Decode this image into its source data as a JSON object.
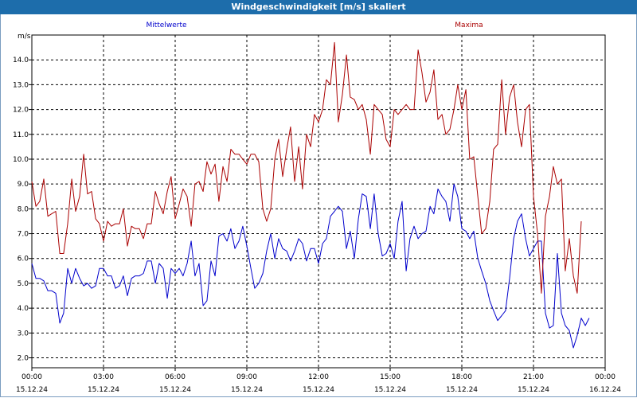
{
  "chart_data": {
    "type": "line",
    "title": "Windgeschwindigkeit [m/s] skaliert",
    "ylabel": "m/s",
    "ylim": [
      1.6,
      15.0
    ],
    "yticks": [
      "2.0",
      "3.0",
      "4.0",
      "5.0",
      "6.0",
      "7.0",
      "8.0",
      "9.0",
      "10.0",
      "11.0",
      "12.0",
      "13.0",
      "14.0"
    ],
    "xticks": [
      {
        "time": "00:00",
        "date": "15.12.24"
      },
      {
        "time": "03:00",
        "date": "15.12.24"
      },
      {
        "time": "06:00",
        "date": "15.12.24"
      },
      {
        "time": "09:00",
        "date": "15.12.24"
      },
      {
        "time": "12:00",
        "date": "15.12.24"
      },
      {
        "time": "15:00",
        "date": "15.12.24"
      },
      {
        "time": "18:00",
        "date": "15.12.24"
      },
      {
        "time": "21:00",
        "date": "15.12.24"
      },
      {
        "time": "00:00",
        "date": "16.12.24"
      }
    ],
    "x_hours": [
      0,
      0.17,
      0.33,
      0.5,
      0.67,
      0.83,
      1,
      1.17,
      1.33,
      1.5,
      1.67,
      1.83,
      2,
      2.17,
      2.33,
      2.5,
      2.67,
      2.83,
      3,
      3.17,
      3.33,
      3.5,
      3.67,
      3.83,
      4,
      4.17,
      4.33,
      4.5,
      4.67,
      4.83,
      5,
      5.17,
      5.33,
      5.5,
      5.67,
      5.83,
      6,
      6.17,
      6.33,
      6.5,
      6.67,
      6.83,
      7,
      7.17,
      7.33,
      7.5,
      7.67,
      7.83,
      8,
      8.17,
      8.33,
      8.5,
      8.67,
      8.83,
      9,
      9.17,
      9.33,
      9.5,
      9.67,
      9.83,
      10,
      10.17,
      10.33,
      10.5,
      10.67,
      10.83,
      11,
      11.17,
      11.33,
      11.5,
      11.67,
      11.83,
      12,
      12.17,
      12.33,
      12.5,
      12.67,
      12.83,
      13,
      13.17,
      13.33,
      13.5,
      13.67,
      13.83,
      14,
      14.17,
      14.33,
      14.5,
      14.67,
      14.83,
      15,
      15.17,
      15.33,
      15.5,
      15.67,
      15.83,
      16,
      16.17,
      16.33,
      16.5,
      16.67,
      16.83,
      17,
      17.17,
      17.33,
      17.5,
      17.67,
      17.83,
      18,
      18.17,
      18.33,
      18.5,
      18.67,
      18.83,
      19,
      19.17,
      19.33,
      19.5,
      19.67,
      19.83,
      20,
      20.17,
      20.33,
      20.5,
      20.67,
      20.83,
      21,
      21.17,
      21.33,
      21.5,
      21.67,
      21.83,
      22,
      22.17,
      22.33,
      22.5,
      22.67,
      22.83,
      23,
      23.17,
      23.33,
      23.5,
      23.67,
      23.83,
      24
    ],
    "grid": true,
    "series": [
      {
        "name": "Mittelwerte",
        "color": "#0000cc",
        "values": [
          5.8,
          5.2,
          5.2,
          5.1,
          4.7,
          4.7,
          4.6,
          3.4,
          3.8,
          5.6,
          5.0,
          5.6,
          5.2,
          4.9,
          5.0,
          4.8,
          4.9,
          5.6,
          5.6,
          5.3,
          5.3,
          4.8,
          4.9,
          5.3,
          4.5,
          5.2,
          5.3,
          5.3,
          5.4,
          5.9,
          5.9,
          5.0,
          5.8,
          5.6,
          4.4,
          5.6,
          5.4,
          5.6,
          5.3,
          5.8,
          6.7,
          5.3,
          5.8,
          4.1,
          4.3,
          5.9,
          5.3,
          6.9,
          7.0,
          6.7,
          7.2,
          6.4,
          6.7,
          7.3,
          6.5,
          5.6,
          4.8,
          5.0,
          5.4,
          6.3,
          7.0,
          6.0,
          6.8,
          6.4,
          6.3,
          5.9,
          6.3,
          6.8,
          6.6,
          5.9,
          6.4,
          6.4,
          5.8,
          6.6,
          6.8,
          7.7,
          7.9,
          8.1,
          7.9,
          6.4,
          7.1,
          6.0,
          7.6,
          8.6,
          8.5,
          7.2,
          8.6,
          7.0,
          6.1,
          6.2,
          6.6,
          6.0,
          7.5,
          8.3,
          5.5,
          6.8,
          7.3,
          6.8,
          7.0,
          7.1,
          8.1,
          7.8,
          8.8,
          8.5,
          8.3,
          7.5,
          9.0,
          8.5,
          7.2,
          7.1,
          6.8,
          7.1,
          6.0,
          5.5,
          5.0,
          4.3,
          3.9,
          3.5,
          3.7,
          3.9,
          5.2,
          6.8,
          7.5,
          7.8,
          6.8,
          6.1,
          6.4,
          6.7,
          6.7,
          3.8,
          3.2,
          3.3,
          6.2,
          3.8,
          3.3,
          3.1,
          2.4,
          2.9,
          3.6,
          3.3,
          3.6
        ]
      },
      {
        "name": "Maxima",
        "color": "#aa0000",
        "values": [
          9.1,
          8.1,
          8.3,
          9.2,
          7.7,
          7.8,
          7.9,
          6.2,
          6.2,
          7.4,
          9.2,
          7.9,
          8.5,
          10.2,
          8.6,
          8.7,
          7.6,
          7.4,
          6.7,
          7.5,
          7.3,
          7.4,
          7.4,
          8.0,
          6.5,
          7.3,
          7.2,
          7.2,
          6.8,
          7.4,
          7.4,
          8.7,
          8.2,
          7.8,
          8.7,
          9.3,
          7.6,
          8.2,
          8.8,
          8.5,
          7.3,
          9.0,
          9.1,
          8.7,
          9.9,
          9.4,
          9.8,
          8.3,
          9.7,
          9.1,
          10.4,
          10.2,
          10.2,
          10.0,
          9.8,
          10.2,
          10.2,
          9.9,
          8.0,
          7.5,
          8.0,
          10.0,
          10.8,
          9.3,
          10.4,
          11.3,
          9.1,
          10.5,
          8.8,
          11.0,
          10.5,
          11.8,
          11.5,
          12.0,
          13.2,
          13.0,
          14.7,
          11.5,
          12.6,
          14.2,
          12.5,
          12.4,
          12.0,
          12.2,
          11.6,
          10.2,
          12.2,
          12.0,
          11.8,
          10.8,
          10.5,
          12.0,
          11.8,
          12.0,
          12.2,
          12.0,
          12.0,
          14.4,
          13.5,
          12.3,
          12.7,
          13.6,
          11.6,
          11.8,
          11.0,
          11.2,
          12.0,
          13.0,
          12.0,
          12.8,
          10.0,
          10.1,
          8.5,
          7.0,
          7.2,
          8.3,
          10.4,
          10.6,
          13.2,
          11.0,
          12.5,
          13.0,
          11.5,
          10.5,
          12.0,
          12.2,
          8.5,
          7.0,
          4.6,
          7.7,
          8.5,
          9.7,
          9.0,
          9.2,
          5.5,
          6.8,
          5.3,
          4.6,
          7.5
        ]
      }
    ]
  }
}
